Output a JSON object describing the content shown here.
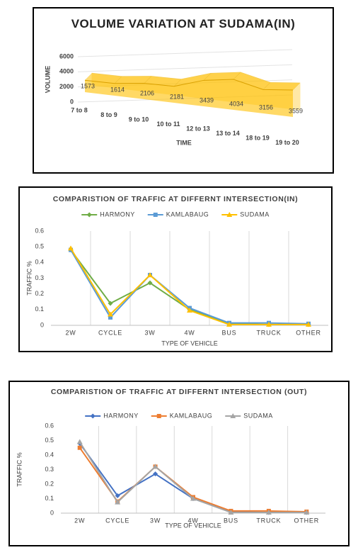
{
  "chart_data": [
    {
      "type": "area",
      "title": "VOLUME VARIATION AT SUDAMA(IN)",
      "categories": [
        "7 to 8",
        "8 to 9",
        "9 to 10",
        "10 to 11",
        "12 to 13",
        "13 to 14",
        "18 to 19",
        "19 to 20"
      ],
      "values": [
        1573,
        1614,
        2106,
        2181,
        3439,
        4034,
        3156,
        3559
      ],
      "color": "#ffc000",
      "xlabel": "TIME",
      "ylabel": "VOLUME",
      "ylim": [
        0,
        6000
      ],
      "yticks": [
        0,
        2000,
        4000,
        6000
      ],
      "grid": true,
      "data_labels": true
    },
    {
      "type": "line",
      "title": "COMPARISTION OF TRAFFIC AT DIFFERNT INTERSECTION(IN)",
      "categories": [
        "2W",
        "CYCLE",
        "3W",
        "4W",
        "BUS",
        "TRUCK",
        "OTHER"
      ],
      "series": [
        {
          "name": "HARMONY",
          "color": "#70ad47",
          "marker": "diamond",
          "values": [
            0.48,
            0.14,
            0.27,
            0.1,
            0.01,
            0.005,
            0.005
          ]
        },
        {
          "name": "KAMLABAUG",
          "color": "#5b9bd5",
          "marker": "square",
          "values": [
            0.48,
            0.05,
            0.32,
            0.11,
            0.015,
            0.015,
            0.01
          ]
        },
        {
          "name": "SUDAMA",
          "color": "#ffc000",
          "marker": "triangle",
          "values": [
            0.49,
            0.07,
            0.32,
            0.095,
            0.005,
            0.005,
            0.005
          ]
        }
      ],
      "xlabel": "TYPE OF VEHICLE",
      "ylabel": "TRAFFIC %",
      "ylim": [
        0,
        0.6
      ],
      "yticks": [
        0,
        0.1,
        0.2,
        0.3,
        0.4,
        0.5,
        0.6
      ],
      "grid": true,
      "legend": "top"
    },
    {
      "type": "line",
      "title": "COMPARISTION OF TRAFFIC AT DIFFERNT INTERSECTION (OUT)",
      "categories": [
        "2W",
        "CYCLE",
        "3W",
        "4W",
        "BUS",
        "TRUCK",
        "OTHER"
      ],
      "series": [
        {
          "name": "HARMONY",
          "color": "#4472c4",
          "marker": "diamond",
          "values": [
            0.48,
            0.12,
            0.27,
            0.1,
            0.01,
            0.005,
            0.005
          ]
        },
        {
          "name": "KAMLABAUG",
          "color": "#ed7d31",
          "marker": "square",
          "values": [
            0.45,
            0.08,
            0.32,
            0.11,
            0.015,
            0.015,
            0.01
          ]
        },
        {
          "name": "SUDAMA",
          "color": "#a5a5a5",
          "marker": "triangle",
          "values": [
            0.49,
            0.075,
            0.32,
            0.1,
            0.005,
            0.005,
            0.005
          ]
        }
      ],
      "xlabel": "TYPE OF VEHICLE",
      "ylabel": "TRAFFIC %",
      "ylim": [
        0,
        0.6
      ],
      "yticks": [
        0,
        0.1,
        0.2,
        0.3,
        0.4,
        0.5,
        0.6
      ],
      "grid": true,
      "legend": "top"
    }
  ]
}
